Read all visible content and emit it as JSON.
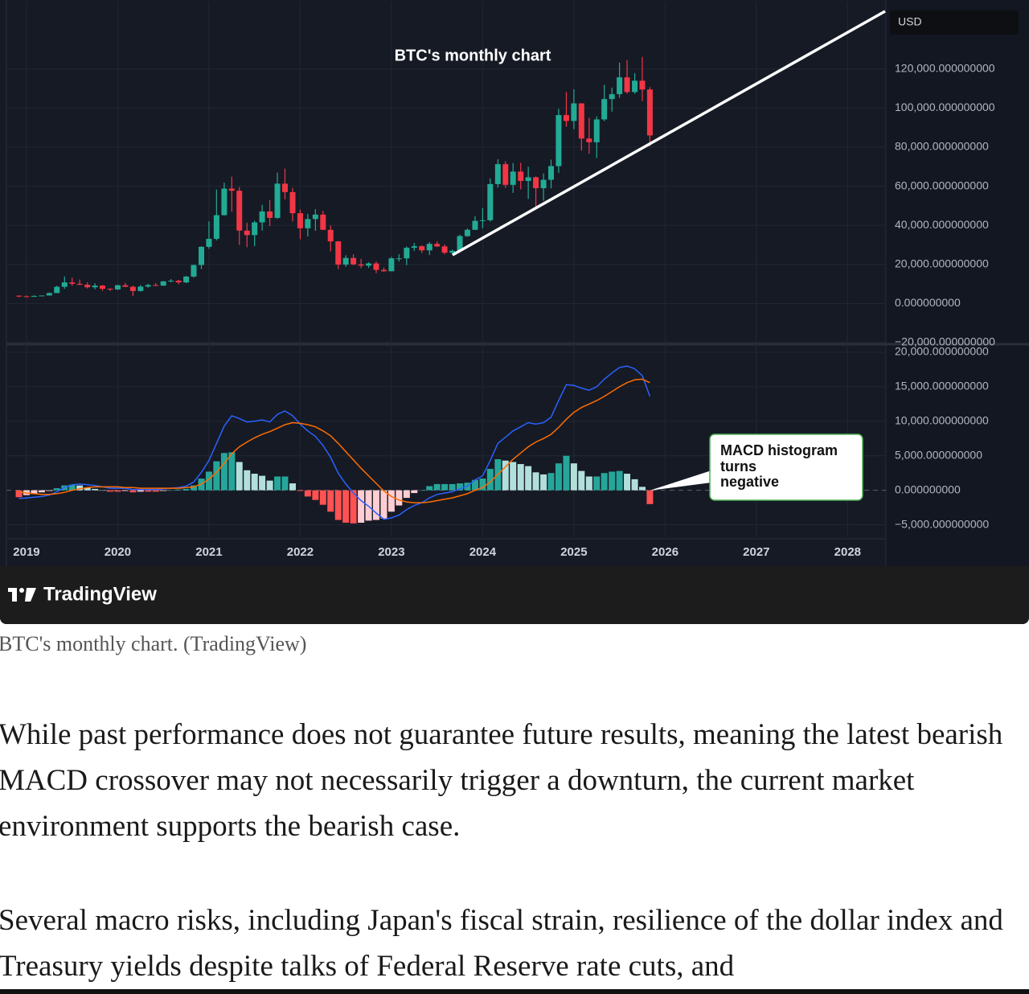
{
  "chart_data": [
    {
      "type": "candlestick",
      "title": "BTC's monthly chart",
      "currency": "USD",
      "up_color": "#22ab94",
      "down_color": "#f23645",
      "grid": true,
      "x": [
        2018.917,
        2019,
        2019.083,
        2019.167,
        2019.25,
        2019.333,
        2019.417,
        2019.5,
        2019.583,
        2019.667,
        2019.75,
        2019.833,
        2019.917,
        2020,
        2020.083,
        2020.167,
        2020.25,
        2020.333,
        2020.417,
        2020.5,
        2020.583,
        2020.667,
        2020.75,
        2020.833,
        2020.917,
        2021,
        2021.083,
        2021.167,
        2021.25,
        2021.333,
        2021.417,
        2021.5,
        2021.583,
        2021.667,
        2021.75,
        2021.833,
        2021.917,
        2022,
        2022.083,
        2022.167,
        2022.25,
        2022.333,
        2022.417,
        2022.5,
        2022.583,
        2022.667,
        2022.75,
        2022.833,
        2022.917,
        2023,
        2023.083,
        2023.167,
        2023.25,
        2023.333,
        2023.417,
        2023.5,
        2023.583,
        2023.667,
        2023.75,
        2023.833,
        2023.917,
        2024,
        2024.083,
        2024.167,
        2024.25,
        2024.333,
        2024.417,
        2024.5,
        2024.583,
        2024.667,
        2024.75,
        2024.833,
        2024.917,
        2025,
        2025.083,
        2025.167,
        2025.25,
        2025.333,
        2025.417,
        2025.5,
        2025.583,
        2025.667,
        2025.75,
        2025.833
      ],
      "open": [
        4000,
        3700,
        3450,
        3850,
        4100,
        5350,
        8550,
        10800,
        10100,
        9600,
        8300,
        9150,
        7550,
        7200,
        9350,
        8550,
        6400,
        8650,
        9450,
        9150,
        11350,
        11650,
        10800,
        13800,
        19700,
        29000,
        33100,
        45200,
        58800,
        57700,
        37300,
        35000,
        41500,
        47100,
        43800,
        61300,
        57000,
        46200,
        38500,
        43200,
        45500,
        37700,
        31800,
        19900,
        23300,
        20000,
        19400,
        20500,
        17200,
        16500,
        23100,
        23100,
        28500,
        29300,
        27200,
        30500,
        29200,
        26000,
        27000,
        34500,
        37700,
        42300,
        42600,
        61100,
        71300,
        60700,
        67500,
        62700,
        64600,
        59000,
        63300,
        70300,
        96400,
        93400,
        102400,
        84400,
        82500,
        94200,
        104600,
        107100,
        115700,
        108200,
        114000,
        109500
      ],
      "high": [
        4200,
        4100,
        4200,
        4100,
        5600,
        9100,
        13900,
        13200,
        12300,
        10900,
        10400,
        9500,
        7750,
        9600,
        10500,
        9200,
        9450,
        10100,
        10400,
        11450,
        12500,
        12100,
        14100,
        19900,
        29300,
        42000,
        58300,
        61800,
        64900,
        59600,
        41300,
        42400,
        50500,
        52900,
        67000,
        69000,
        59100,
        48000,
        45800,
        48200,
        47400,
        40000,
        31900,
        24700,
        25200,
        22800,
        21100,
        21500,
        18400,
        23900,
        25200,
        29200,
        31000,
        29800,
        31400,
        31800,
        30200,
        27500,
        35200,
        38400,
        44700,
        48900,
        64000,
        73800,
        72800,
        71900,
        72000,
        70000,
        65000,
        66500,
        73600,
        99600,
        108300,
        109600,
        102500,
        95000,
        95800,
        111900,
        110400,
        123200,
        124500,
        117900,
        126200,
        110700
      ],
      "low": [
        3200,
        3400,
        3400,
        3700,
        4050,
        5300,
        7500,
        9100,
        9400,
        7700,
        7300,
        6500,
        6400,
        6900,
        8450,
        3850,
        6150,
        8100,
        8900,
        8950,
        10950,
        9900,
        10400,
        13200,
        17600,
        28000,
        32300,
        45000,
        47000,
        30000,
        28800,
        29300,
        37300,
        39600,
        43300,
        53300,
        42000,
        32900,
        34300,
        37200,
        37600,
        26700,
        17600,
        18800,
        19600,
        18100,
        18200,
        15500,
        16300,
        16500,
        21400,
        19600,
        26900,
        25800,
        24800,
        28900,
        25200,
        24900,
        26600,
        34100,
        37600,
        38500,
        41900,
        59300,
        59200,
        56600,
        58400,
        53500,
        49000,
        52600,
        58900,
        66800,
        90500,
        89200,
        78200,
        76600,
        74400,
        93300,
        98200,
        105300,
        107300,
        107300,
        103500,
        80500
      ],
      "close": [
        3700,
        3450,
        3850,
        4100,
        5350,
        8550,
        10800,
        10100,
        9600,
        8300,
        9150,
        7550,
        7200,
        9350,
        8550,
        6400,
        8650,
        9450,
        9150,
        11350,
        11650,
        10800,
        13800,
        19700,
        29000,
        33100,
        45200,
        58800,
        57700,
        37300,
        35000,
        41500,
        47100,
        43800,
        61300,
        57000,
        46200,
        38500,
        43200,
        45500,
        37700,
        31800,
        19900,
        23300,
        20000,
        19400,
        20500,
        17200,
        16500,
        23100,
        23100,
        28500,
        29300,
        27200,
        30500,
        29200,
        26000,
        27000,
        34500,
        37700,
        42300,
        42600,
        61100,
        71300,
        60700,
        67500,
        62700,
        64600,
        59000,
        63300,
        70300,
        96400,
        93400,
        102400,
        84400,
        82500,
        94200,
        104600,
        107100,
        115700,
        108200,
        114000,
        109500,
        86000
      ],
      "xlim": [
        2018.78,
        2028.42
      ],
      "xticks": [
        2019,
        2020,
        2021,
        2022,
        2023,
        2024,
        2025,
        2026,
        2027,
        2028
      ],
      "ylim": [
        -20000,
        152000
      ],
      "yticks": [
        {
          "value": -20000,
          "label": "−20,000.000000000"
        },
        {
          "value": 0,
          "label": "0.000000000"
        },
        {
          "value": 20000,
          "label": "20,000.000000000"
        },
        {
          "value": 40000,
          "label": "40,000.000000000"
        },
        {
          "value": 60000,
          "label": "60,000.000000000"
        },
        {
          "value": 80000,
          "label": "80,000.000000000"
        },
        {
          "value": 100000,
          "label": "100,000.000000000"
        },
        {
          "value": 120000,
          "label": "120,000.000000000"
        }
      ]
    },
    {
      "type": "macd",
      "grid": true,
      "annotation": [
        "MACD histogram",
        "turns",
        "negative"
      ],
      "series": [
        {
          "color": "#2962ff",
          "values": [
            -1200,
            -1100,
            -1000,
            -900,
            -700,
            -200,
            400,
            800,
            900,
            800,
            700,
            500,
            300,
            300,
            300,
            100,
            100,
            100,
            100,
            200,
            300,
            400,
            600,
            1200,
            2600,
            4300,
            6800,
            9300,
            10800,
            10400,
            9900,
            10000,
            10200,
            9900,
            11000,
            11500,
            10800,
            9600,
            8600,
            7800,
            6500,
            4800,
            2500,
            900,
            -400,
            -1500,
            -2300,
            -3300,
            -4200,
            -4000,
            -3600,
            -2800,
            -2200,
            -1800,
            -1100,
            -600,
            -400,
            -200,
            200,
            600,
            1500,
            2100,
            4300,
            6800,
            7700,
            8600,
            9200,
            9800,
            9600,
            9800,
            10600,
            13000,
            15300,
            15200,
            14800,
            14500,
            15000,
            16100,
            17000,
            17800,
            18000,
            17600,
            16600,
            13600
          ]
        },
        {
          "color": "#ff6d00",
          "values": [
            -200,
            -400,
            -500,
            -600,
            -600,
            -500,
            -300,
            0,
            200,
            400,
            500,
            500,
            500,
            500,
            400,
            400,
            300,
            300,
            300,
            300,
            300,
            300,
            400,
            500,
            900,
            1600,
            2600,
            3900,
            5300,
            6300,
            7000,
            7600,
            8100,
            8500,
            9000,
            9500,
            9800,
            9700,
            9500,
            9200,
            8600,
            7900,
            6800,
            5600,
            4400,
            3200,
            2100,
            1000,
            -100,
            -900,
            -1400,
            -1700,
            -1800,
            -1800,
            -1700,
            -1500,
            -1300,
            -1100,
            -800,
            -500,
            0,
            400,
            1200,
            2300,
            3400,
            4500,
            5400,
            6300,
            7000,
            7500,
            8100,
            9100,
            10300,
            11300,
            12000,
            12500,
            13000,
            13600,
            14300,
            15000,
            15600,
            16000,
            16100,
            15600
          ]
        }
      ],
      "histogram": {
        "colors": [
          "#26a69a",
          "#b2dfdb",
          "#ff5252",
          "#ffcdd2"
        ],
        "values": [
          -1000,
          -700,
          -500,
          -300,
          -100,
          300,
          700,
          800,
          700,
          400,
          200,
          0,
          -200,
          -200,
          -100,
          -300,
          -200,
          -200,
          -200,
          -100,
          0,
          100,
          200,
          700,
          1700,
          2700,
          4200,
          5400,
          5500,
          4100,
          2900,
          2400,
          2100,
          1400,
          2000,
          2000,
          1000,
          -100,
          -900,
          -1400,
          -2100,
          -3100,
          -4300,
          -4700,
          -4800,
          -4700,
          -4400,
          -4300,
          -4100,
          -3100,
          -2200,
          -1100,
          -400,
          0,
          600,
          900,
          900,
          900,
          1000,
          1100,
          1500,
          1700,
          3100,
          4500,
          4300,
          4100,
          3800,
          3500,
          2600,
          2300,
          2500,
          3900,
          5000,
          3900,
          2800,
          2000,
          2000,
          2500,
          2700,
          2800,
          2400,
          1600,
          500,
          -2000
        ]
      },
      "ylim": [
        -6800,
        20700
      ],
      "yticks": [
        {
          "value": -5000,
          "label": "−5,000.000000000"
        },
        {
          "value": 0,
          "label": "0.000000000"
        },
        {
          "value": 5000,
          "label": "5,000.000000000"
        },
        {
          "value": 10000,
          "label": "10,000.000000000"
        },
        {
          "value": 15000,
          "label": "15,000.000000000"
        },
        {
          "value": 20000,
          "label": "20,000.000000000"
        }
      ]
    }
  ],
  "brand": "TradingView",
  "caption": "BTC's monthly chart. (TradingView)",
  "paragraphs": [
    "While past performance does not guarantee future results, meaning the latest bearish MACD crossover may not necessarily trigger a downturn, the current market environment supports the bearish case.",
    "Several macro risks, including Japan's fiscal strain, resilience of the dollar index and Treasury yields despite talks of Federal Reserve rate cuts, and"
  ]
}
